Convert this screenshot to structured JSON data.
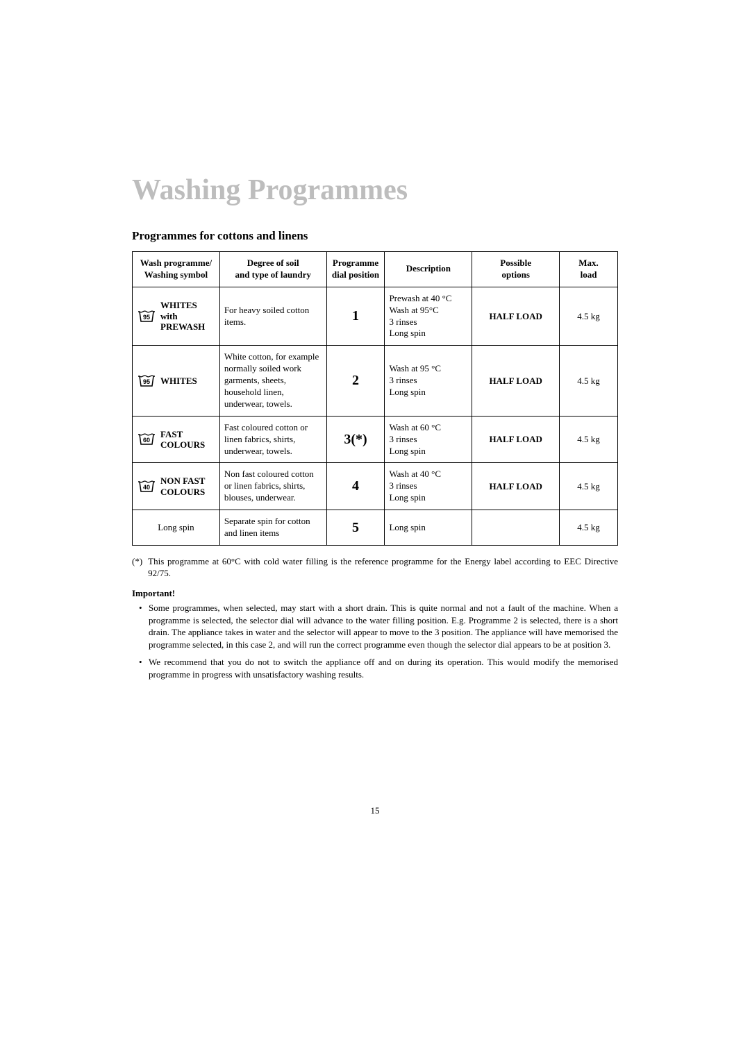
{
  "title": "Washing Programmes",
  "subtitle": "Programmes for cottons and linens",
  "columns": [
    "Wash programme/\nWashing symbol",
    "Degree of soil\nand type of laundry",
    "Programme\ndial position",
    "Description",
    "Possible\noptions",
    "Max.\nload"
  ],
  "rows": [
    {
      "symbol_temp": "95",
      "name": "WHITES with PREWASH",
      "soil": "For heavy soiled cotton items.",
      "dial": "1",
      "desc": "Prewash at 40 °C\nWash at 95°C\n3 rinses\nLong spin",
      "options": "HALF LOAD",
      "load": "4.5 kg"
    },
    {
      "symbol_temp": "95",
      "name": "WHITES",
      "soil": "White cotton, for example normally soiled work garments, sheets, household linen, underwear, towels.",
      "dial": "2",
      "desc": "Wash at 95 °C\n3 rinses\nLong spin",
      "options": "HALF LOAD",
      "load": "4.5 kg"
    },
    {
      "symbol_temp": "60",
      "name": "FAST COLOURS",
      "soil": "Fast coloured cotton or linen fabrics, shirts, underwear, towels.",
      "dial": "3(*)",
      "desc": "Wash at 60 °C\n3 rinses\nLong spin",
      "options": "HALF LOAD",
      "load": "4.5 kg"
    },
    {
      "symbol_temp": "40",
      "name": "NON FAST COLOURS",
      "soil": "Non fast coloured cotton or linen fabrics, shirts, blouses, underwear.",
      "dial": "4",
      "desc": "Wash at 40 °C\n3 rinses\nLong spin",
      "options": "HALF LOAD",
      "load": "4.5 kg"
    },
    {
      "symbol_temp": "",
      "name": "Long spin",
      "soil": "Separate spin for cotton and linen items",
      "dial": "5",
      "desc": "Long spin",
      "options": "",
      "load": "4.5 kg"
    }
  ],
  "footnote_mark": "(*)",
  "footnote_text": "This programme at 60°C with cold water filling is the reference programme for the Energy label according to EEC Directive 92/75.",
  "important_heading": "Important!",
  "notes": [
    "Some programmes, when selected, may start with a short drain. This is quite normal and not a fault of the machine. When a programme is selected, the selector dial will advance to the water filling position. E.g. Programme 2 is selected, there is a short drain. The appliance takes in water and the selector will appear to move to the 3 position. The appliance will have memorised the programme selected, in this case 2, and will run the correct programme even though the selector dial appears to be at position 3.",
    "We recommend that you do not to switch the appliance off and on during its operation. This would modify the memorised programme  in progress with unsatisfactory washing results."
  ],
  "page_number": "15",
  "style": {
    "title_color": "#bdbdbd",
    "text_color": "#000000",
    "border_color": "#000000",
    "title_fontsize": 42,
    "body_fontsize": 13,
    "dial_fontsize": 20
  }
}
